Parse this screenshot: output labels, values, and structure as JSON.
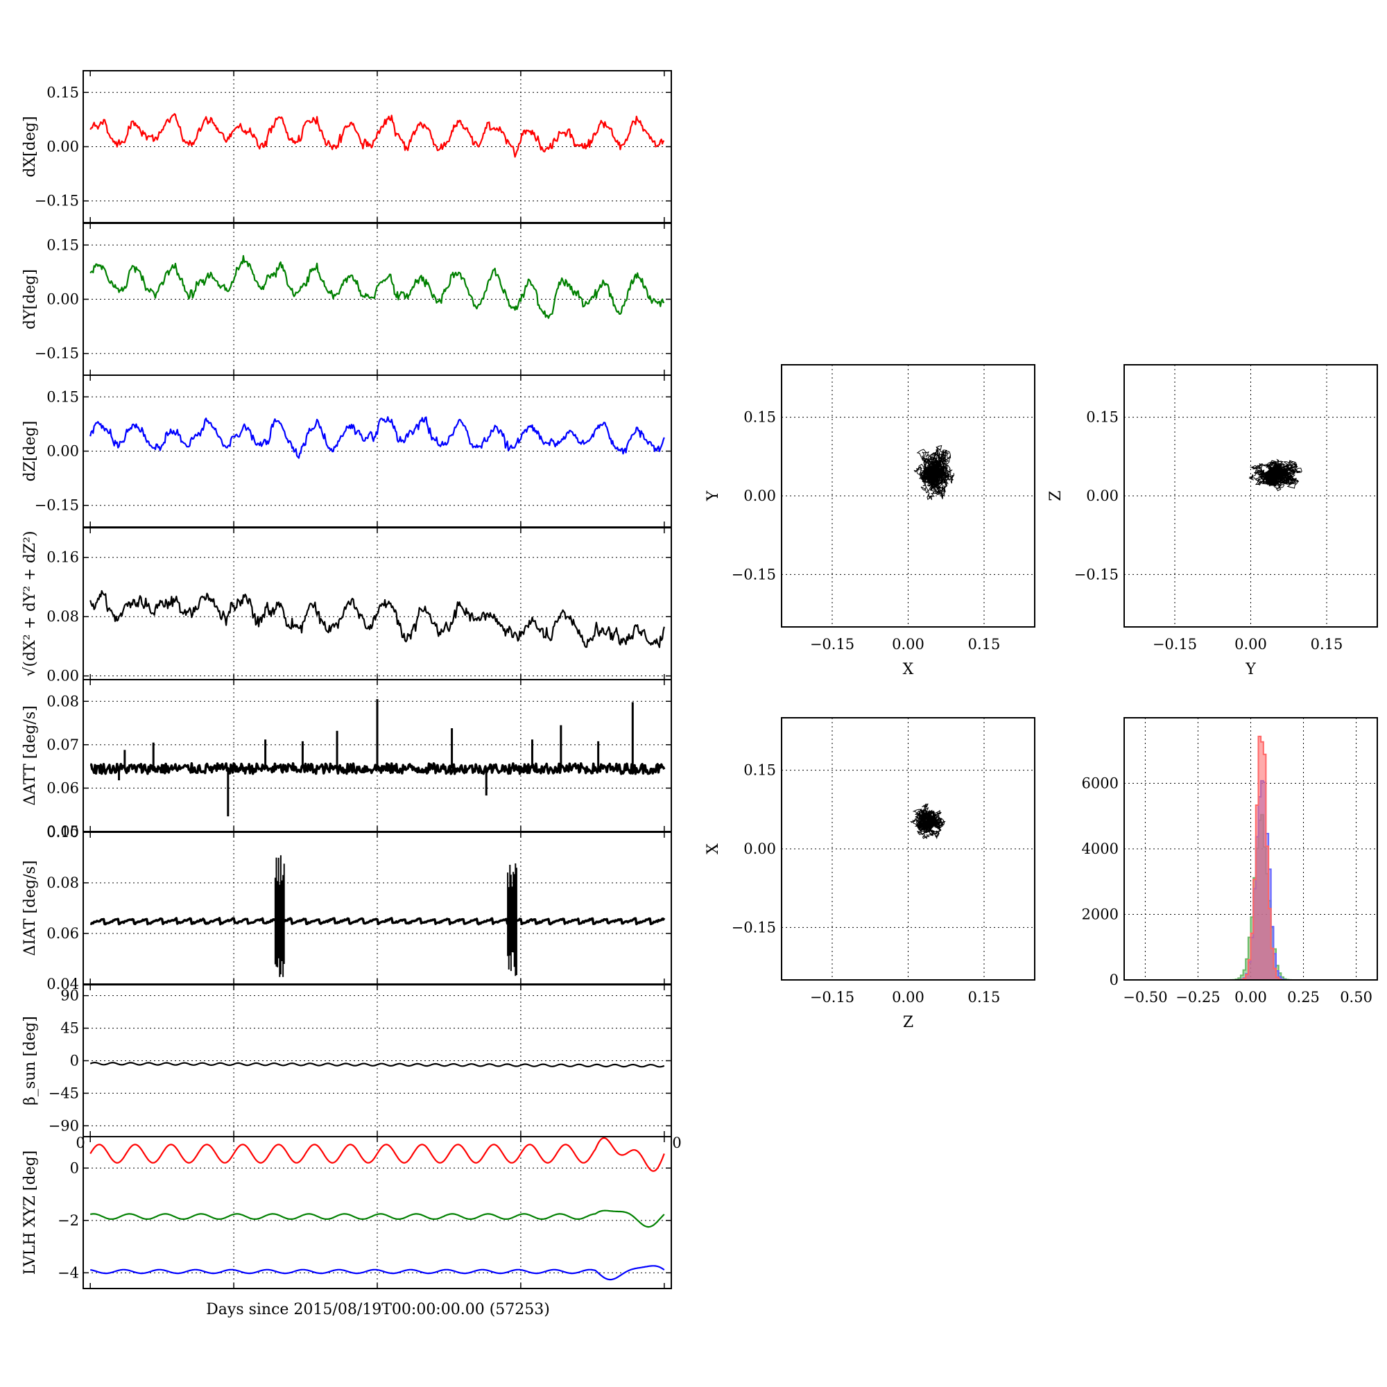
{
  "figure": {
    "xlabel": "Days since 2015/08/19T00:00:00.00 (57253)",
    "stray_tick_left": "0",
    "stray_tick_right": "0"
  },
  "colors": {
    "red": "#ff0000",
    "green": "#008000",
    "blue": "#0000ff",
    "black": "#000000",
    "hist_red": "#ff6666",
    "hist_green": "#66bb66",
    "hist_blue": "#6666ff"
  },
  "chart_data": [
    {
      "id": "dx",
      "type": "line",
      "title": "",
      "xlabel": "",
      "ylabel": "dX[deg]",
      "ylim": [
        -0.21,
        0.21
      ],
      "yticks": [
        0.15,
        0.0,
        -0.15
      ],
      "ytick_labels": [
        "0.15",
        "0.00",
        "−0.15"
      ],
      "grid": true,
      "series": [
        {
          "color": "red",
          "mean": 0.045,
          "amp": 0.03,
          "noise": 0.011,
          "trend": -0.02,
          "points": 600
        }
      ]
    },
    {
      "id": "dy",
      "type": "line",
      "title": "",
      "xlabel": "",
      "ylabel": "dY[deg]",
      "ylim": [
        -0.21,
        0.21
      ],
      "yticks": [
        0.15,
        0.0,
        -0.15
      ],
      "ytick_labels": [
        "0.15",
        "0.00",
        "−0.15"
      ],
      "grid": true,
      "series": [
        {
          "color": "green",
          "mean": 0.06,
          "amp": 0.035,
          "noise": 0.012,
          "trend": -0.05,
          "points": 600
        }
      ]
    },
    {
      "id": "dz",
      "type": "line",
      "title": "",
      "xlabel": "",
      "ylabel": "dZ[deg]",
      "ylim": [
        -0.21,
        0.21
      ],
      "yticks": [
        0.15,
        0.0,
        -0.15
      ],
      "ytick_labels": [
        "0.15",
        "0.00",
        "−0.15"
      ],
      "grid": true,
      "series": [
        {
          "color": "blue",
          "mean": 0.04,
          "amp": 0.03,
          "noise": 0.011,
          "trend": 0.0,
          "points": 600
        }
      ]
    },
    {
      "id": "dmag",
      "type": "line",
      "title": "",
      "xlabel": "",
      "ylabel": "√(dX² + dY² + dZ²)",
      "ylim": [
        -0.005,
        0.2
      ],
      "yticks": [
        0.16,
        0.08,
        0.0
      ],
      "ytick_labels": [
        "0.16",
        "0.08",
        "0.00"
      ],
      "grid": true,
      "series": [
        {
          "color": "black",
          "mean": 0.1,
          "amp": 0.012,
          "noise": 0.008,
          "trend": -0.05,
          "points": 600
        }
      ]
    },
    {
      "id": "datt",
      "type": "line",
      "title": "",
      "xlabel": "",
      "ylabel": "ΔATT [deg/s]",
      "ylim": [
        0.05,
        0.085
      ],
      "yticks": [
        0.08,
        0.07,
        0.06,
        0.05
      ],
      "ytick_labels": [
        "0.08",
        "0.07",
        "0.06",
        "0.05"
      ],
      "grid": true,
      "series": [
        {
          "color": "black",
          "baseline": 0.0645,
          "band": 0.0012,
          "points": 600
        }
      ],
      "spikes": [
        [
          0.06,
          0.0688
        ],
        [
          0.05,
          0.0618
        ],
        [
          0.11,
          0.0705
        ],
        [
          0.24,
          0.0535
        ],
        [
          0.305,
          0.0712
        ],
        [
          0.37,
          0.0708
        ],
        [
          0.43,
          0.0732
        ],
        [
          0.5,
          0.0805
        ],
        [
          0.63,
          0.0738
        ],
        [
          0.69,
          0.0583
        ],
        [
          0.77,
          0.0712
        ],
        [
          0.82,
          0.0745
        ],
        [
          0.885,
          0.0708
        ],
        [
          0.945,
          0.0798
        ]
      ]
    },
    {
      "id": "diat",
      "type": "line",
      "title": "",
      "xlabel": "",
      "ylabel": "ΔIAT [deg/s]",
      "ylim": [
        0.04,
        0.1
      ],
      "yticks": [
        0.1,
        0.08,
        0.06,
        0.04
      ],
      "ytick_labels": [
        "0.10",
        "0.08",
        "0.06",
        "0.04"
      ],
      "grid": true,
      "series": [
        {
          "color": "black",
          "baseline": 0.0648,
          "sawtooth": 0.002,
          "period": 0.025,
          "points": 600
        }
      ],
      "bursts": [
        {
          "x": 0.33,
          "ymin": 0.041,
          "ymax": 0.091
        },
        {
          "x": 0.735,
          "ymin": 0.041,
          "ymax": 0.09
        }
      ]
    },
    {
      "id": "beta",
      "type": "line",
      "title": "",
      "xlabel": "",
      "ylabel": "β_sun [deg]",
      "ylim": [
        -105,
        105
      ],
      "yticks": [
        90,
        45,
        0,
        -45,
        -90
      ],
      "ytick_labels": [
        "90",
        "45",
        "0",
        "−45",
        "−90"
      ],
      "grid": true,
      "series": [
        {
          "color": "black",
          "mean": -4,
          "amp": 1.5,
          "trend": -3,
          "points": 600
        }
      ]
    },
    {
      "id": "lvlh",
      "type": "line",
      "title": "",
      "xlabel": "",
      "ylabel": "LVLH XYZ [deg]",
      "ylim": [
        -4.6,
        1.2
      ],
      "yticks": [
        0,
        -2,
        -4
      ],
      "ytick_labels": [
        "0",
        "−2",
        "−4"
      ],
      "grid": true,
      "series": [
        {
          "color": "red",
          "mean": 0.55,
          "amp": 0.35,
          "points": 600
        },
        {
          "color": "green",
          "mean": -1.85,
          "amp": 0.1,
          "points": 600
        },
        {
          "color": "blue",
          "mean": -3.95,
          "amp": 0.07,
          "points": 600
        }
      ]
    },
    {
      "id": "scatter_xy",
      "type": "scatter",
      "title": "",
      "xlabel": "X",
      "ylabel": "Y",
      "xlim": [
        -0.25,
        0.25
      ],
      "ylim": [
        -0.25,
        0.25
      ],
      "ticks": [
        -0.15,
        0.0,
        0.15
      ],
      "tick_labels": [
        "−0.15",
        "0.00",
        "0.15"
      ],
      "grid": true,
      "cloud": {
        "cx": 0.05,
        "cy": 0.045,
        "sx": 0.025,
        "sy": 0.038,
        "points": 2200
      }
    },
    {
      "id": "scatter_yz",
      "type": "scatter",
      "title": "",
      "xlabel": "Y",
      "ylabel": "Z",
      "xlim": [
        -0.25,
        0.25
      ],
      "ylim": [
        -0.25,
        0.25
      ],
      "ticks": [
        -0.15,
        0.0,
        0.15
      ],
      "tick_labels": [
        "−0.15",
        "0.00",
        "0.15"
      ],
      "grid": true,
      "cloud": {
        "cx": 0.05,
        "cy": 0.04,
        "sx": 0.038,
        "sy": 0.02,
        "points": 2200
      }
    },
    {
      "id": "scatter_zx",
      "type": "scatter",
      "title": "",
      "xlabel": "Z",
      "ylabel": "X",
      "xlim": [
        -0.25,
        0.25
      ],
      "ylim": [
        -0.25,
        0.25
      ],
      "ticks": [
        -0.15,
        0.0,
        0.15
      ],
      "tick_labels": [
        "−0.15",
        "0.00",
        "0.15"
      ],
      "grid": true,
      "cloud": {
        "cx": 0.04,
        "cy": 0.05,
        "sx": 0.023,
        "sy": 0.022,
        "points": 2200
      }
    },
    {
      "id": "hist",
      "type": "bar",
      "title": "",
      "xlabel": "",
      "ylabel": "",
      "xlim": [
        -0.6,
        0.6
      ],
      "ylim": [
        0,
        8000
      ],
      "xticks": [
        -0.5,
        -0.25,
        0.0,
        0.25,
        0.5
      ],
      "xtick_labels": [
        "−0.50",
        "−0.25",
        "0.00",
        "0.25",
        "0.50"
      ],
      "yticks": [
        0,
        2000,
        4000,
        6000
      ],
      "ytick_labels": [
        "0",
        "2000",
        "4000",
        "6000"
      ],
      "grid": true,
      "series": [
        {
          "color": "hist_red",
          "center": 0.045,
          "sigma": 0.025,
          "peak": 7800
        },
        {
          "color": "hist_blue",
          "center": 0.05,
          "sigma": 0.028,
          "peak": 6600
        },
        {
          "color": "hist_green",
          "center": 0.045,
          "sigma": 0.035,
          "peak": 4700
        }
      ]
    }
  ]
}
